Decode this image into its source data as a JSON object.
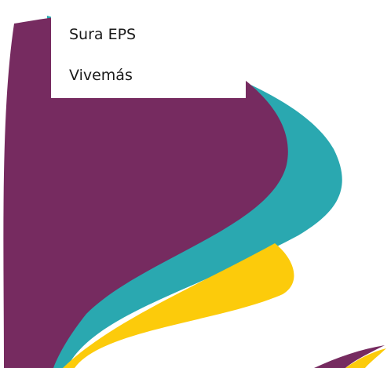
{
  "dropdown": {
    "items": [
      "Sura EPS",
      "Vivemás"
    ]
  }
}
